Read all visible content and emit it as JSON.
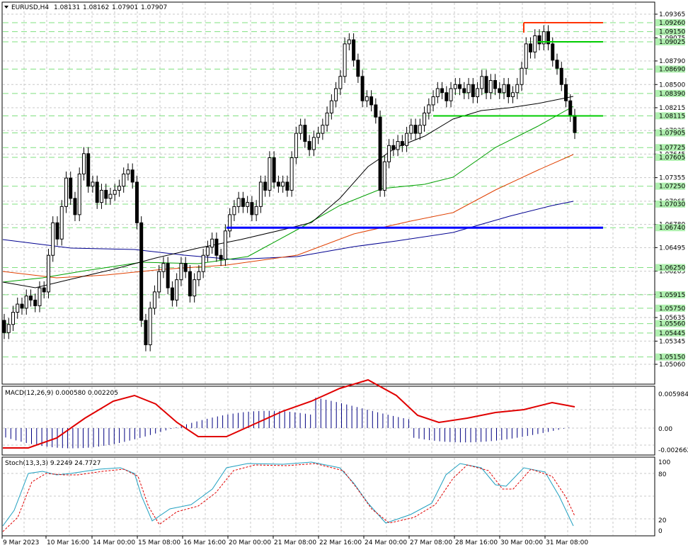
{
  "header": {
    "symbol": "EURUSD,H4",
    "open": "1.08131",
    "high": "1.08162",
    "low": "1.07901",
    "close": "1.07907"
  },
  "price_axis": {
    "labels": [
      "1.09365",
      "1.09075",
      "1.08790",
      "1.08500",
      "1.08215",
      "1.07935",
      "1.07645",
      "1.07355",
      "1.07065",
      "1.06780",
      "1.06495",
      "1.06205",
      "1.05920",
      "1.05635",
      "1.05345",
      "1.05060"
    ],
    "highlighted_levels": [
      "1.09260",
      "1.09150",
      "1.09025",
      "1.08690",
      "1.08390",
      "1.08115",
      "1.07905",
      "1.07725",
      "1.07605",
      "1.07250",
      "1.07030",
      "1.06740",
      "1.06250",
      "1.05915",
      "1.05750",
      "1.05560",
      "1.05445",
      "1.05150"
    ]
  },
  "macd": {
    "label": "MACD(12,26,9) 0.000580 0.002205",
    "axis": [
      "0.005984",
      "0.00",
      "-0.002662"
    ]
  },
  "stoch": {
    "label": "Stoch(13,3,3) 9.2249 24.7727",
    "axis": [
      "100",
      "80",
      "20",
      "0"
    ]
  },
  "time_axis": [
    "9 Mar 2023",
    "10 Mar 16:00",
    "14 Mar 00:00",
    "15 Mar 08:00",
    "16 Mar 16:00",
    "20 Mar 00:00",
    "21 Mar 08:00",
    "22 Mar 16:00",
    "24 Mar 00:00",
    "27 Mar 08:00",
    "28 Mar 16:00",
    "30 Mar 00:00",
    "31 Mar 08:00"
  ],
  "colors": {
    "candle": "#000000",
    "ma_black": "#000000",
    "ma_green": "#00a000",
    "ma_red": "#e04000",
    "ma_blue": "#000090",
    "level_blue": "#0000ff",
    "level_green": "#00cc00",
    "level_red": "#ff3300",
    "grid_green": "#80e080",
    "macd_hist": "#000080",
    "macd_signal": "#e00000",
    "stoch_main": "#20a0c0",
    "stoch_signal": "#e00000"
  }
}
